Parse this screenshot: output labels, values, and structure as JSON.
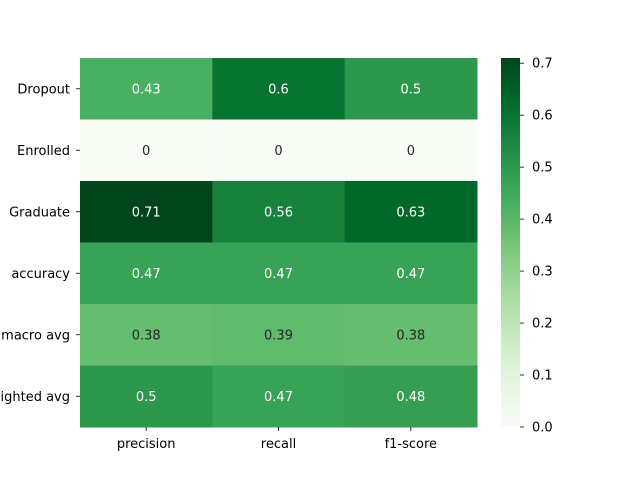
{
  "chart_data": {
    "type": "heatmap",
    "title": "",
    "xlabel": "",
    "ylabel": "",
    "x_categories": [
      "precision",
      "recall",
      "f1-score"
    ],
    "y_categories": [
      "Dropout",
      "Enrolled",
      "Graduate",
      "accuracy",
      "macro avg",
      "weighted avg"
    ],
    "values": [
      [
        0.43,
        0.6,
        0.5
      ],
      [
        0,
        0,
        0
      ],
      [
        0.71,
        0.56,
        0.63
      ],
      [
        0.47,
        0.47,
        0.47
      ],
      [
        0.38,
        0.39,
        0.38
      ],
      [
        0.5,
        0.47,
        0.48
      ]
    ],
    "value_labels": [
      [
        "0.43",
        "0.6",
        "0.5"
      ],
      [
        "0",
        "0",
        "0"
      ],
      [
        "0.71",
        "0.56",
        "0.63"
      ],
      [
        "0.47",
        "0.47",
        "0.47"
      ],
      [
        "0.38",
        "0.39",
        "0.38"
      ],
      [
        "0.5",
        "0.47",
        "0.48"
      ]
    ],
    "colorbar": {
      "colormap": "Greens",
      "vmin": 0,
      "vmax": 0.71,
      "ticks": [
        0.0,
        0.1,
        0.2,
        0.3,
        0.4,
        0.5,
        0.6,
        0.7
      ],
      "tick_labels": [
        "0.0",
        "0.1",
        "0.2",
        "0.3",
        "0.4",
        "0.5",
        "0.6",
        "0.7"
      ]
    },
    "grid": false,
    "legend": "colorbar-right"
  }
}
